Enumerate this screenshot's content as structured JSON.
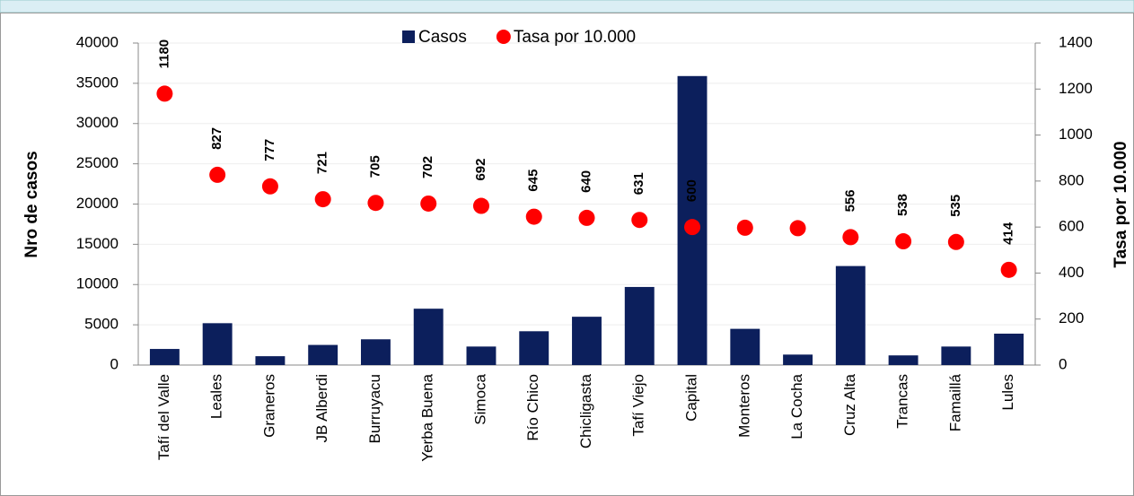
{
  "chart_data": {
    "type": "bar",
    "categories": [
      "Tafí del Valle",
      "Leales",
      "Graneros",
      "JB Alberdi",
      "Burruyacu",
      "Yerba Buena",
      "Simoca",
      "Río Chico",
      "Chicligasta",
      "Tafí Viejo",
      "Capital",
      "Monteros",
      "La Cocha",
      "Cruz Alta",
      "Trancas",
      "Famaillá",
      "Lules"
    ],
    "series": [
      {
        "name": "Casos",
        "type": "bar",
        "color": "#0c1f5c",
        "values": [
          2000,
          5200,
          1100,
          2500,
          3200,
          7000,
          2300,
          4200,
          6000,
          9700,
          35900,
          4500,
          1300,
          12300,
          1200,
          2300,
          3900
        ]
      },
      {
        "name": "Tasa por 10.000",
        "type": "scatter",
        "axis": "y2",
        "color": "#ff0000",
        "values": [
          1180,
          827,
          777,
          721,
          705,
          702,
          692,
          645,
          640,
          631,
          600,
          597,
          595,
          556,
          538,
          535,
          414
        ],
        "value_labels": [
          "1180",
          "827",
          "777",
          "721",
          "705",
          "702",
          "692",
          "645",
          "640",
          "631",
          "600",
          null,
          null,
          "556",
          "538",
          "535",
          "414"
        ]
      }
    ],
    "y_label": "Nro de casos",
    "y2_label": "Tasa por 10.000",
    "ylim": [
      0,
      40000
    ],
    "yticks": [
      0,
      5000,
      10000,
      15000,
      20000,
      25000,
      30000,
      35000,
      40000
    ],
    "y2lim": [
      0,
      1400
    ],
    "y2ticks": [
      0,
      200,
      400,
      600,
      800,
      1000,
      1200,
      1400
    ],
    "grid": true,
    "legend": "top"
  }
}
